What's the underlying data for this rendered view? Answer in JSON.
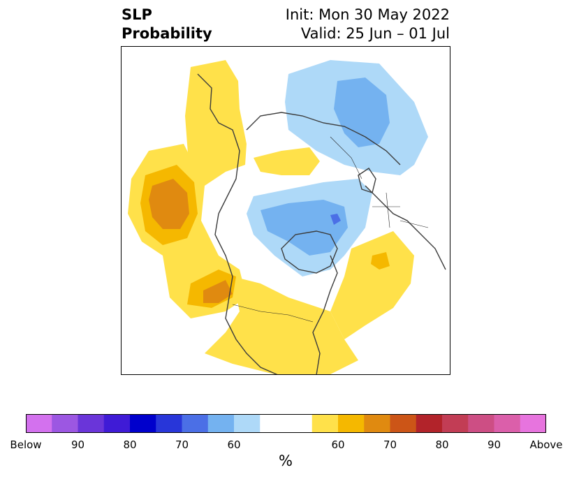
{
  "title": {
    "left_line1": "SLP",
    "left_line2": "Probability",
    "right_line1": "Init: Mon 30 May 2022",
    "right_line2": "Valid: 25 Jun – 01 Jul"
  },
  "colorbar": {
    "unit": "%",
    "colors": [
      "#d371ee",
      "#9c57e2",
      "#6a35d9",
      "#3f1bd6",
      "#0000cc",
      "#2836d9",
      "#4b6fe6",
      "#74b2f0",
      "#aed9f8",
      "#ffffff",
      "#ffffff",
      "#ffe14a",
      "#f5b800",
      "#e08a10",
      "#cc5517",
      "#b2232a",
      "#c23d55",
      "#cd4e84",
      "#db5faa",
      "#e774de"
    ],
    "tick_labels": [
      "Below",
      "90",
      "80",
      "70",
      "60",
      "",
      "60",
      "70",
      "80",
      "90",
      "Above"
    ]
  },
  "map": {
    "colors": {
      "light_yellow": "#ffe14a",
      "gold": "#f5b800",
      "orange": "#e08a10",
      "light_blue": "#aed9f8",
      "mid_blue": "#74b2f0",
      "blue": "#4b6fe6",
      "coast": "#3c3c3c",
      "border": "#000000"
    }
  }
}
